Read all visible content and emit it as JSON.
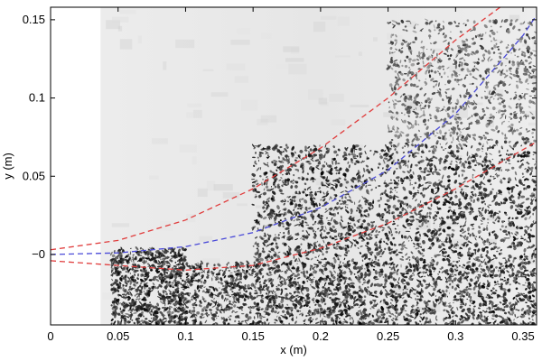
{
  "chart_data": {
    "type": "scatter",
    "title": "",
    "xlabel": "x (m)",
    "ylabel": "y (m)",
    "xlim": [
      0,
      0.36
    ],
    "ylim": [
      -0.045,
      0.158
    ],
    "x_ticks": [
      0,
      0.05,
      0.1,
      0.15,
      0.2,
      0.25,
      0.3,
      0.35
    ],
    "x_tick_labels": [
      "0",
      "0.05",
      "0.1",
      "0.15",
      "0.2",
      "0.25",
      "0.3",
      "0.35"
    ],
    "y_ticks": [
      0,
      0.05,
      0.1,
      0.15
    ],
    "y_tick_labels": [
      "−0",
      "0.05",
      "0.1",
      "0.15"
    ],
    "grid": false,
    "background": "grayscale spray image; left edge x < 0.037 blank white",
    "image_left_edge_x": 0.037,
    "series": [
      {
        "style": "dashed",
        "color": "#e03c3c",
        "x": [
          0,
          0.05,
          0.1,
          0.15,
          0.2,
          0.25,
          0.3,
          0.333
        ],
        "y": [
          0.003,
          0.009,
          0.022,
          0.042,
          0.068,
          0.1,
          0.137,
          0.158
        ]
      },
      {
        "style": "dashed",
        "color": "#4a4ad8",
        "x": [
          0,
          0.05,
          0.1,
          0.15,
          0.2,
          0.25,
          0.3,
          0.35,
          0.36
        ],
        "y": [
          0,
          0.001,
          0.005,
          0.014,
          0.03,
          0.054,
          0.09,
          0.14,
          0.153
        ]
      },
      {
        "style": "dashed",
        "color": "#e03c3c",
        "x": [
          0,
          0.05,
          0.1,
          0.15,
          0.2,
          0.25,
          0.3,
          0.36
        ],
        "y": [
          -0.004,
          -0.007,
          -0.01,
          -0.007,
          0.004,
          0.02,
          0.042,
          0.072
        ]
      }
    ],
    "droplet_density": [
      {
        "x_range": [
          0.045,
          0.1
        ],
        "y_range": [
          -0.045,
          0.004
        ],
        "density": "medium",
        "darkness": "dark"
      },
      {
        "x_range": [
          0.1,
          0.36
        ],
        "y_range": [
          -0.045,
          -0.005
        ],
        "density": "high",
        "darkness": "dark"
      },
      {
        "x_range": [
          0.15,
          0.36
        ],
        "y_range": [
          -0.005,
          0.07
        ],
        "density": "high",
        "darkness": "dark"
      },
      {
        "x_range": [
          0.25,
          0.36
        ],
        "y_range": [
          0.07,
          0.15
        ],
        "density": "medium",
        "darkness": "medium"
      }
    ]
  }
}
